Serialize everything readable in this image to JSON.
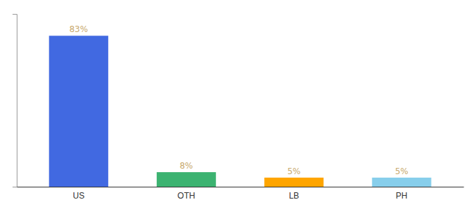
{
  "chart_data": {
    "type": "bar",
    "categories": [
      "US",
      "OTH",
      "LB",
      "PH"
    ],
    "values": [
      83,
      8,
      5,
      5
    ],
    "value_labels": [
      "83%",
      "8%",
      "5%",
      "5%"
    ],
    "data_labels": true,
    "colors": [
      "#4169E1",
      "#3CB371",
      "#FFA500",
      "#87CEEB"
    ],
    "ylim": [
      0,
      95
    ],
    "tick_labels": "x",
    "grid": false
  }
}
